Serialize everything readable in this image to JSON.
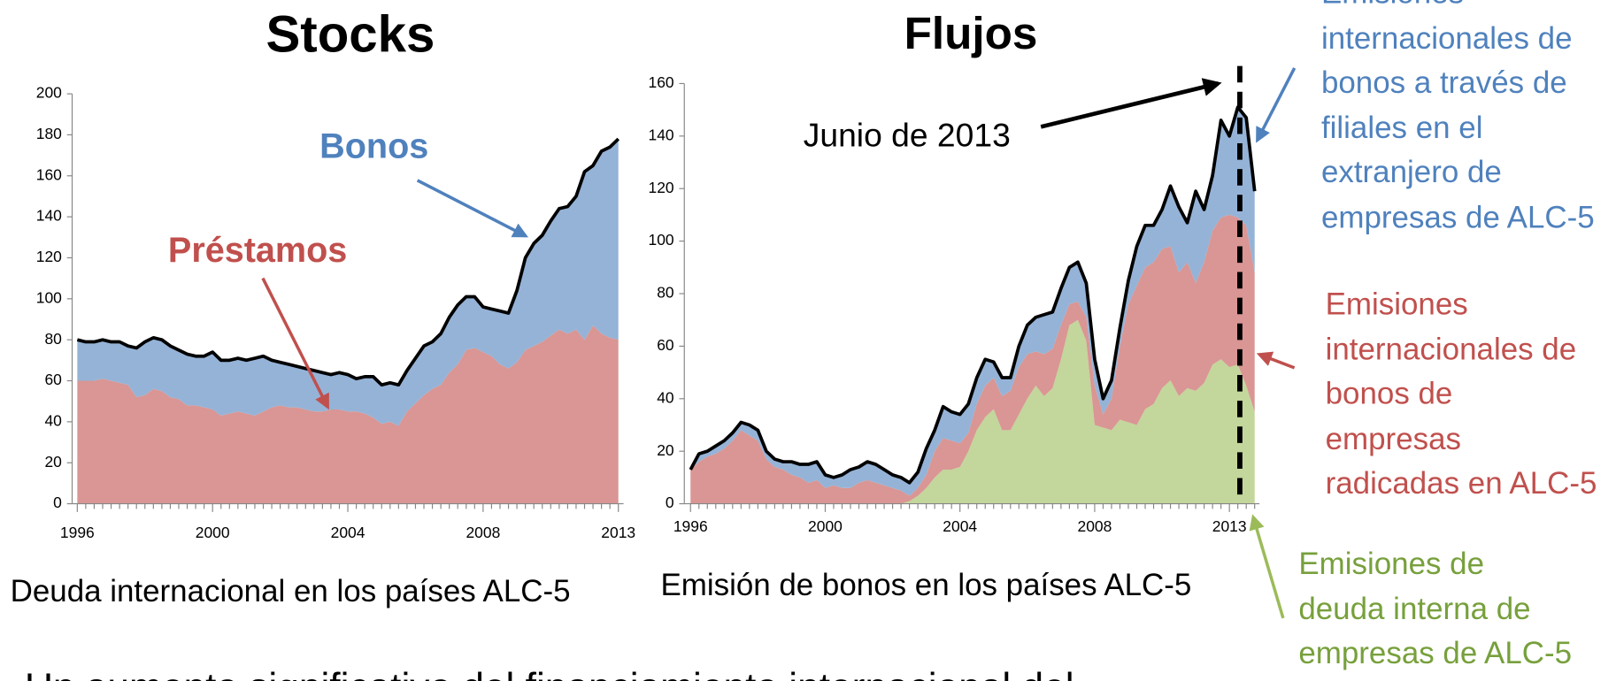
{
  "chart_data": [
    {
      "type": "area",
      "stacked": true,
      "title": "Stocks",
      "subtitle": "Deuda internacional en los países ALC-5",
      "categories": [
        "1996",
        null,
        null,
        null,
        null,
        null,
        null,
        null,
        null,
        null,
        null,
        null,
        null,
        null,
        null,
        null,
        "2000",
        null,
        null,
        null,
        null,
        null,
        null,
        null,
        null,
        null,
        null,
        null,
        null,
        null,
        null,
        null,
        "2004",
        null,
        null,
        null,
        null,
        null,
        null,
        null,
        null,
        null,
        null,
        null,
        null,
        null,
        null,
        null,
        "2008",
        null,
        null,
        null,
        null,
        null,
        null,
        null,
        null,
        null,
        null,
        null,
        null,
        null,
        null,
        null,
        "2013"
      ],
      "series": [
        {
          "name": "Préstamos",
          "color": "#d99694",
          "label_color": "#c0504d",
          "values": [
            60,
            60,
            60,
            61,
            60,
            59,
            58,
            52,
            53,
            56,
            55,
            52,
            51,
            48,
            48,
            47,
            46,
            43,
            44,
            45,
            44,
            43,
            45,
            47,
            48,
            47,
            47,
            46,
            45,
            45,
            46,
            46,
            45,
            45,
            44,
            42,
            39,
            40,
            38,
            45,
            49,
            53,
            56,
            58,
            64,
            68,
            75,
            76,
            74,
            72,
            68,
            66,
            69,
            75,
            77,
            79,
            82,
            85,
            83,
            85,
            80,
            87,
            83,
            81,
            80
          ]
        },
        {
          "name": "Bonos",
          "color": "#95b3d7",
          "label_color": "#4f81bd",
          "values": [
            20,
            19,
            19,
            19,
            19,
            20,
            19,
            24,
            26,
            25,
            25,
            25,
            24,
            25,
            24,
            25,
            28,
            27,
            26,
            26,
            26,
            28,
            27,
            23,
            21,
            21,
            20,
            20,
            20,
            19,
            17,
            18,
            18,
            16,
            18,
            20,
            19,
            19,
            20,
            20,
            22,
            24,
            23,
            25,
            27,
            29,
            26,
            25,
            22,
            23,
            26,
            27,
            35,
            45,
            50,
            52,
            56,
            59,
            62,
            65,
            82,
            78,
            89,
            93,
            98
          ]
        }
      ],
      "ylim": [
        0,
        200
      ],
      "yticks": [
        0,
        20,
        40,
        60,
        80,
        100,
        120,
        140,
        160,
        180,
        200
      ],
      "grid": false
    },
    {
      "type": "area",
      "stacked": true,
      "title": "Flujos",
      "subtitle": "Emisión de bonos en los países ALC-5",
      "annotation": "Junio de 2013",
      "categories": [
        "1996",
        null,
        null,
        null,
        null,
        null,
        null,
        null,
        null,
        null,
        null,
        null,
        null,
        null,
        null,
        null,
        "2000",
        null,
        null,
        null,
        null,
        null,
        null,
        null,
        null,
        null,
        null,
        null,
        null,
        null,
        null,
        null,
        "2004",
        null,
        null,
        null,
        null,
        null,
        null,
        null,
        null,
        null,
        null,
        null,
        null,
        null,
        null,
        null,
        "2008",
        null,
        null,
        null,
        null,
        null,
        null,
        null,
        null,
        null,
        null,
        null,
        null,
        null,
        null,
        null,
        "2013",
        null,
        null,
        null
      ],
      "series": [
        {
          "name": "Emisiones de\ndeuda interna de\nempresas de ALC-5",
          "color": "#c3d69b",
          "label_color": "#77a03c",
          "values": [
            0,
            0,
            0,
            0,
            0,
            0,
            0,
            0,
            0,
            0,
            0,
            0,
            0,
            0,
            0,
            0,
            0,
            0,
            0,
            0,
            0,
            0,
            0,
            0,
            0,
            0,
            1,
            3,
            6,
            10,
            13,
            13,
            14,
            20,
            28,
            33,
            36,
            28,
            28,
            34,
            40,
            45,
            41,
            44,
            55,
            68,
            70,
            62,
            30,
            29,
            28,
            32,
            31,
            30,
            36,
            38,
            44,
            47,
            41,
            44,
            43,
            46,
            53,
            55,
            52,
            53,
            45,
            35
          ]
        },
        {
          "name": "Emisiones\ninternacionales de\nbonos de\nempresas\nradicadas en ALC-5",
          "color": "#d99694",
          "label_color": "#c0504d",
          "values": [
            13,
            16,
            18,
            19,
            21,
            24,
            28,
            26,
            24,
            17,
            14,
            13,
            11,
            10,
            8,
            9,
            6,
            7,
            6,
            6,
            8,
            9,
            8,
            7,
            6,
            5,
            2,
            3,
            5,
            10,
            12,
            11,
            9,
            7,
            10,
            12,
            12,
            13,
            15,
            18,
            17,
            13,
            16,
            15,
            13,
            8,
            7,
            9,
            15,
            5,
            12,
            28,
            45,
            53,
            54,
            54,
            53,
            51,
            47,
            48,
            41,
            46,
            51,
            54,
            58,
            56,
            61,
            53
          ]
        },
        {
          "name": "Emisiones\ninternacionales de\nbonos a través de\nfiliales en el\nextranjero de\nempresas de ALC-5",
          "color": "#95b3d7",
          "label_color": "#4f81bd",
          "values": [
            0,
            3,
            2,
            3,
            3,
            3,
            3,
            4,
            4,
            3,
            3,
            3,
            5,
            5,
            7,
            7,
            5,
            3,
            5,
            7,
            6,
            7,
            7,
            6,
            5,
            5,
            5,
            6,
            10,
            8,
            12,
            11,
            11,
            11,
            10,
            10,
            6,
            7,
            5,
            8,
            11,
            13,
            15,
            14,
            14,
            14,
            15,
            13,
            10,
            6,
            7,
            7,
            9,
            15,
            16,
            14,
            15,
            23,
            25,
            15,
            35,
            20,
            21,
            37,
            30,
            42,
            41,
            31
          ]
        }
      ],
      "ylim": [
        0,
        160
      ],
      "yticks": [
        0,
        20,
        40,
        60,
        80,
        100,
        120,
        140,
        160
      ],
      "grid": false
    }
  ],
  "footer_text": "Un aumento significativo del financiamiento internacional del"
}
